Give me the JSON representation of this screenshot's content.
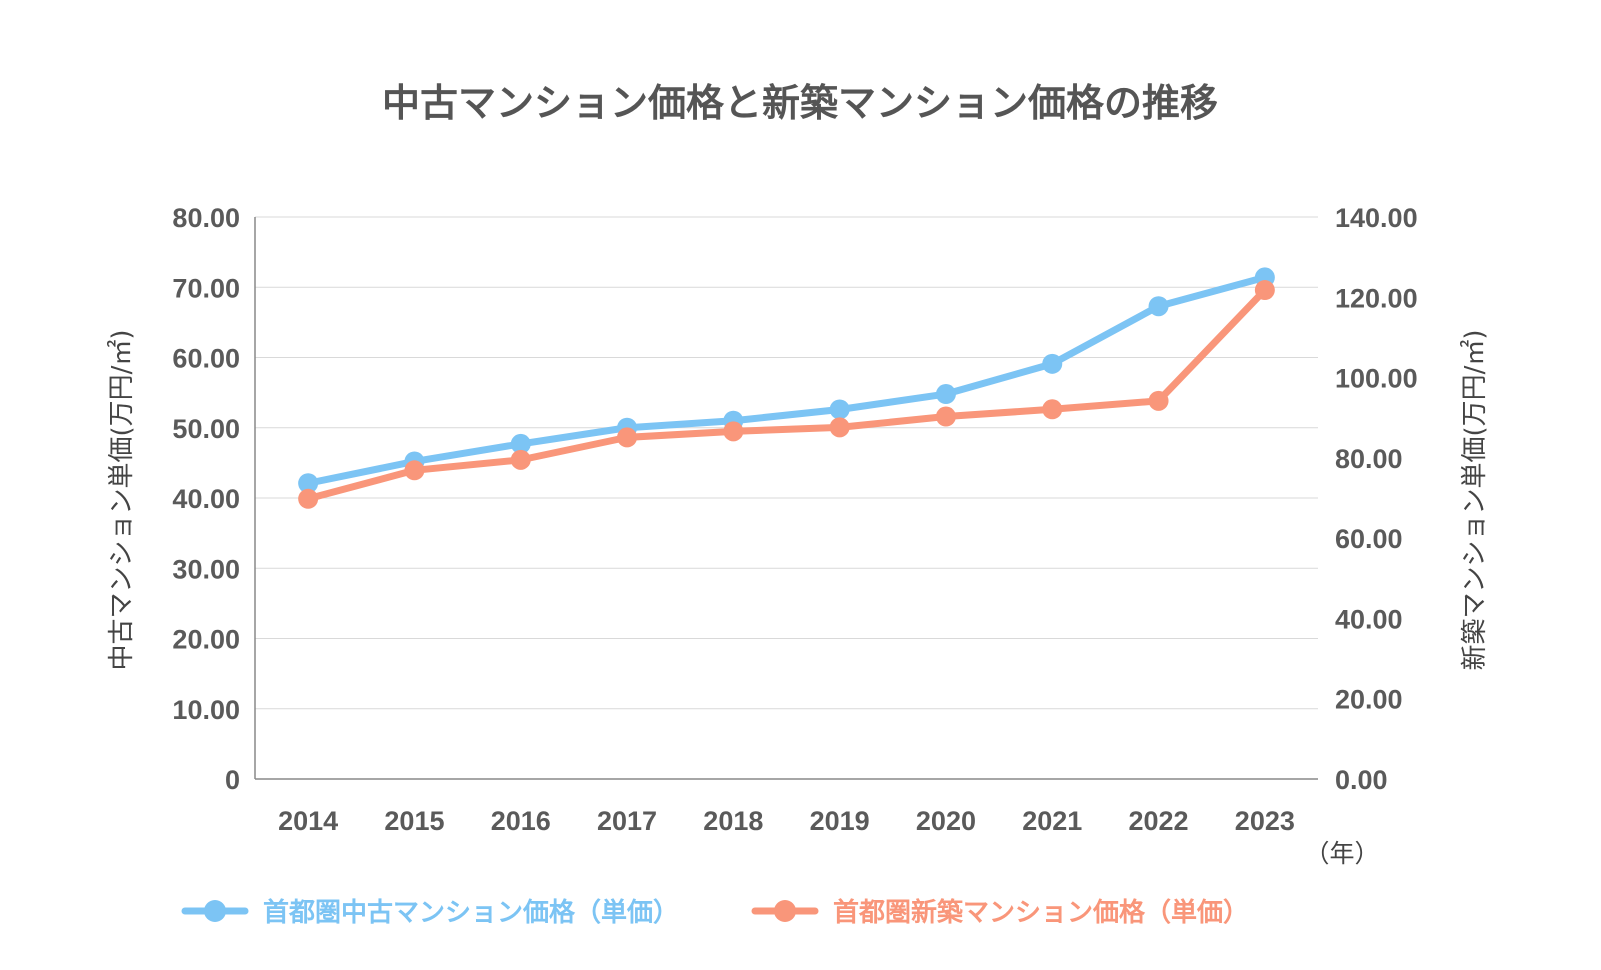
{
  "chart_data": {
    "type": "line",
    "title": "中古マンション価格と新築マンション価格の推移",
    "categories": [
      "2014",
      "2015",
      "2016",
      "2017",
      "2018",
      "2019",
      "2020",
      "2021",
      "2022",
      "2023"
    ],
    "x_unit": "（年）",
    "y_left": {
      "label": "中古マンション単価(万円/㎡)",
      "range": [
        0,
        80
      ],
      "ticks": [
        "0",
        "10.00",
        "20.00",
        "30.00",
        "40.00",
        "50.00",
        "60.00",
        "70.00",
        "80.00"
      ]
    },
    "y_right": {
      "label": "新築マンション単価(万円/㎡)",
      "range": [
        0,
        140
      ],
      "ticks": [
        "0.00",
        "20.00",
        "40.00",
        "60.00",
        "80.00",
        "100.00",
        "120.00",
        "140.00"
      ]
    },
    "grid": true,
    "legend_position": "bottom",
    "series": [
      {
        "name": "首都圏中古マンション価格（単価）",
        "axis": "left",
        "color": "#7cc4f4",
        "values": [
          42.1,
          45.2,
          47.7,
          50.0,
          51.0,
          52.6,
          54.8,
          59.1,
          67.3,
          71.4
        ]
      },
      {
        "name": "首都圏新築マンション価格（単価）",
        "axis": "right",
        "color": "#f9967a",
        "values": [
          69.8,
          76.9,
          79.5,
          85.1,
          86.6,
          87.6,
          90.3,
          92.1,
          94.2,
          121.8
        ]
      }
    ]
  }
}
